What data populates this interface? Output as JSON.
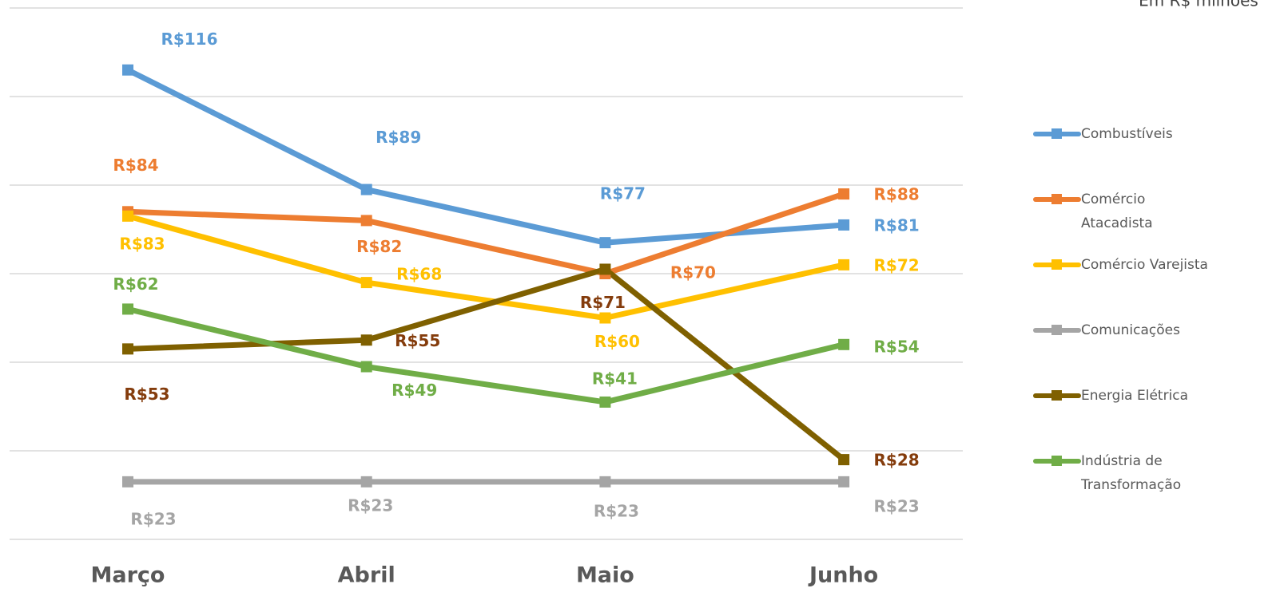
{
  "chart_data": {
    "type": "line",
    "subtitle": "Em R$ milhões",
    "categories": [
      "Março",
      "Abril",
      "Maio",
      "Junho"
    ],
    "ylim": [
      10,
      130
    ],
    "yticks": [
      10,
      30,
      50,
      70,
      90,
      110,
      130
    ],
    "grid": true,
    "legend": "right",
    "series": [
      {
        "name": "Combustíveis",
        "color": "#5b9bd5",
        "values": [
          116,
          89,
          77,
          81
        ],
        "value_labels": [
          "R$116",
          "R$89",
          "R$77",
          "R$81"
        ]
      },
      {
        "name": "Comércio Atacadista",
        "color": "#ed7d31",
        "values": [
          84,
          82,
          70,
          88
        ],
        "value_labels": [
          "R$84",
          "R$82",
          "R$70",
          "R$88"
        ]
      },
      {
        "name": "Comércio Varejista",
        "color": "#ffc000",
        "values": [
          83,
          68,
          60,
          72
        ],
        "value_labels": [
          "R$83",
          "R$68",
          "R$60",
          "R$72"
        ]
      },
      {
        "name": "Comunicações",
        "color": "#a5a5a5",
        "values": [
          23,
          23,
          23,
          23
        ],
        "value_labels": [
          "R$23",
          "R$23",
          "R$23",
          "R$23"
        ]
      },
      {
        "name": "Energia Elétrica",
        "color": "#7f6000",
        "label_color": "#843c0c",
        "values": [
          53,
          55,
          71,
          28
        ],
        "value_labels": [
          "R$53",
          "R$55",
          "R$71",
          "R$28"
        ]
      },
      {
        "name": "Indústria de Transformação",
        "color": "#70ad47",
        "values": [
          62,
          49,
          41,
          54
        ],
        "value_labels": [
          "R$62",
          "R$49",
          "R$41",
          "R$54"
        ]
      }
    ]
  }
}
